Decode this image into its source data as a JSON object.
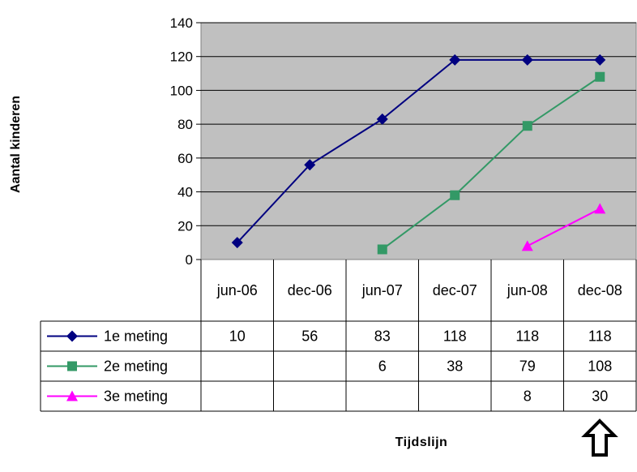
{
  "chart_data": {
    "type": "line",
    "title": "",
    "xlabel": "Tijdslijn",
    "ylabel": "Aantal kinderen",
    "categories": [
      "jun-06",
      "dec-06",
      "jun-07",
      "dec-07",
      "jun-08",
      "dec-08"
    ],
    "ylim": [
      0,
      140
    ],
    "yticks": [
      0,
      20,
      40,
      60,
      80,
      100,
      120,
      140
    ],
    "grid": true,
    "legend": "data-table",
    "plot_background": "#c0c0c0",
    "series": [
      {
        "name": "1e meting",
        "color": "#000080",
        "marker": "diamond",
        "values": [
          10,
          56,
          83,
          118,
          118,
          118
        ]
      },
      {
        "name": "2e meting",
        "color": "#339966",
        "marker": "square",
        "values": [
          null,
          null,
          6,
          38,
          79,
          108
        ]
      },
      {
        "name": "3e meting",
        "color": "#ff00ff",
        "marker": "triangle",
        "values": [
          null,
          null,
          null,
          null,
          8,
          30
        ]
      }
    ],
    "annotations": [
      {
        "type": "arrow",
        "direction": "up",
        "under_category": "dec-08"
      }
    ]
  }
}
